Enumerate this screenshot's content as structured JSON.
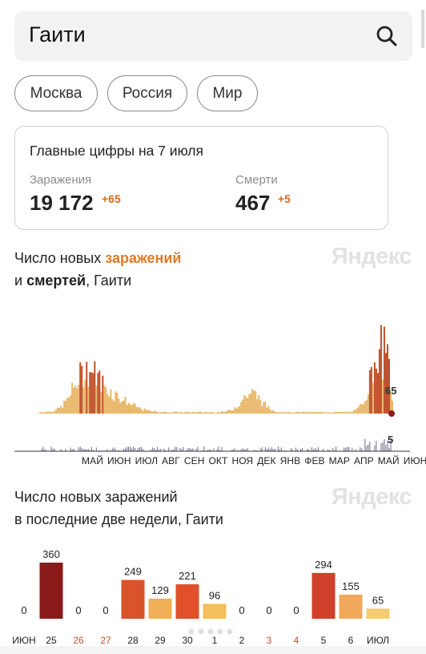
{
  "search": {
    "query": "Гаити"
  },
  "region_chips": [
    "Москва",
    "Россия",
    "Мир"
  ],
  "stats_card": {
    "title": "Главные цифры на 7 июля",
    "infections": {
      "label": "Заражения",
      "value": "19 172",
      "delta": "+65"
    },
    "deaths": {
      "label": "Смерти",
      "value": "467",
      "delta": "+5"
    }
  },
  "timeline_chart": {
    "title_part1": "Число новых ",
    "title_accent": "заражений",
    "title_part2": "и ",
    "title_bold": "смертей",
    "title_part3": ", Гаити",
    "watermark": "Яндекс",
    "last_infections_label": "65",
    "last_deaths_label": "5",
    "months": [
      "МАЙ",
      "ИЮН",
      "ИЮЛ",
      "АВГ",
      "СЕН",
      "ОКТ",
      "НОЯ",
      "ДЕК",
      "ЯНВ",
      "ФЕВ",
      "МАР",
      "АПР",
      "МАЙ",
      "ИЮН"
    ]
  },
  "two_weeks_chart_meta": {
    "title_line1": "Число новых заражений",
    "title_line2": "в последние две недели, Гаити",
    "watermark": "Яндекс"
  },
  "colors": {
    "accent": "#e07a28",
    "line": "#e8b86a",
    "peak": "#c0502a",
    "weekend": "#c0502a",
    "dot": "#8b1a1a"
  },
  "chart_data": {
    "type": "bar",
    "title": "Число новых заражений в последние две недели, Гаити",
    "categories": [
      "ИЮН",
      "25",
      "26",
      "27",
      "28",
      "29",
      "30",
      "1",
      "2",
      "3",
      "4",
      "5",
      "6",
      "ИЮЛ"
    ],
    "weekend_categories": [
      "26",
      "27",
      "3",
      "4"
    ],
    "values": [
      0,
      360,
      0,
      0,
      249,
      129,
      221,
      96,
      0,
      0,
      0,
      294,
      155,
      65
    ],
    "bar_colors": [
      "#e8b86a",
      "#8b1a1a",
      "#e8b86a",
      "#e8b86a",
      "#d9532b",
      "#f0b058",
      "#e0502a",
      "#f2bf5a",
      "#e8b86a",
      "#e8b86a",
      "#e8b86a",
      "#d0402a",
      "#f0a85a",
      "#f5cc6e"
    ],
    "ylim": [
      0,
      360
    ]
  }
}
